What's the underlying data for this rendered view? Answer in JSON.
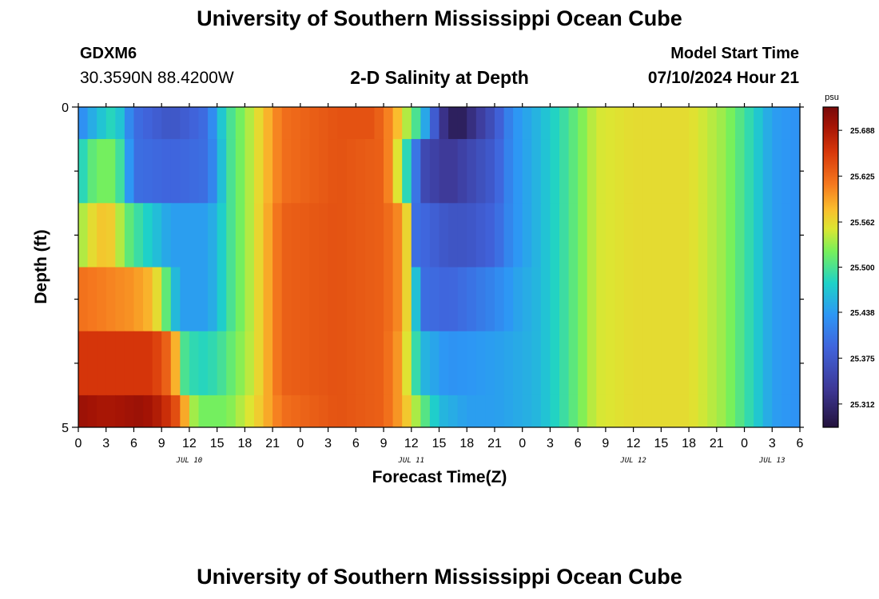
{
  "header": {
    "title": "University of Southern Mississippi Ocean Cube",
    "station_id": "GDXM6",
    "coordinates": "30.3590N  88.4200W",
    "subtitle": "2-D Salinity at Depth",
    "model_start_label": "Model Start Time",
    "model_start_value": "07/10/2024 Hour 21"
  },
  "footer": {
    "title": "University of Southern Mississippi Ocean Cube"
  },
  "chart_data": {
    "type": "heatmap",
    "title": "2-D Salinity at Depth",
    "xlabel": "Forecast Time(Z)",
    "ylabel": "Depth (ft)",
    "x_hours_range": [
      0,
      78
    ],
    "y_range": [
      0,
      5
    ],
    "y_tick_labels": [
      "0",
      "5"
    ],
    "x_tick_labels": [
      "0",
      "3",
      "6",
      "9",
      "12",
      "15",
      "18",
      "21",
      "0",
      "3",
      "6",
      "9",
      "12",
      "15",
      "18",
      "21",
      "0",
      "3",
      "6",
      "9",
      "12",
      "15",
      "18",
      "21",
      "0",
      "3",
      "6"
    ],
    "date_labels": [
      {
        "label": "JUL 10",
        "hour": 12
      },
      {
        "label": "JUL 11",
        "hour": 36
      },
      {
        "label": "JUL 12",
        "hour": 60
      },
      {
        "label": "JUL 13",
        "hour": 75
      }
    ],
    "colorbar": {
      "unit": "psu",
      "min": 25.28,
      "max": 25.72,
      "ticks": [
        25.312,
        25.375,
        25.438,
        25.5,
        25.562,
        25.625,
        25.688
      ],
      "tick_labels": [
        "25.312",
        "25.375",
        "25.438",
        "25.500",
        "25.562",
        "25.625",
        "25.688"
      ]
    },
    "depth_layers": [
      {
        "depth_range": [
          0,
          0.5
        ],
        "profile": [
          [
            0,
            25.42
          ],
          [
            2,
            25.46
          ],
          [
            4,
            25.49
          ],
          [
            6,
            25.4
          ],
          [
            10,
            25.37
          ],
          [
            14,
            25.4
          ],
          [
            15,
            25.45
          ],
          [
            16,
            25.49
          ],
          [
            19,
            25.55
          ],
          [
            22,
            25.62
          ],
          [
            28,
            25.64
          ],
          [
            32,
            25.64
          ],
          [
            34,
            25.6
          ],
          [
            35,
            25.56
          ],
          [
            36.5,
            25.5
          ],
          [
            38,
            25.42
          ],
          [
            39,
            25.34
          ],
          [
            40,
            25.31
          ],
          [
            41,
            25.29
          ],
          [
            42,
            25.31
          ],
          [
            45,
            25.37
          ],
          [
            47,
            25.43
          ],
          [
            50,
            25.46
          ],
          [
            53,
            25.5
          ],
          [
            56,
            25.55
          ],
          [
            60,
            25.56
          ],
          [
            66,
            25.56
          ],
          [
            70,
            25.53
          ],
          [
            73,
            25.48
          ],
          [
            75,
            25.44
          ],
          [
            78,
            25.43
          ]
        ]
      },
      {
        "depth_range": [
          0.5,
          1.5
        ],
        "profile": [
          [
            0,
            25.47
          ],
          [
            1,
            25.5
          ],
          [
            2,
            25.52
          ],
          [
            4,
            25.52
          ],
          [
            5,
            25.47
          ],
          [
            6,
            25.4
          ],
          [
            10,
            25.39
          ],
          [
            14,
            25.4
          ],
          [
            15,
            25.44
          ],
          [
            16,
            25.49
          ],
          [
            19,
            25.55
          ],
          [
            22,
            25.62
          ],
          [
            28,
            25.64
          ],
          [
            33,
            25.63
          ],
          [
            34,
            25.59
          ],
          [
            35,
            25.52
          ],
          [
            36,
            25.45
          ],
          [
            37,
            25.36
          ],
          [
            40,
            25.33
          ],
          [
            42,
            25.35
          ],
          [
            45,
            25.38
          ],
          [
            47,
            25.43
          ],
          [
            50,
            25.46
          ],
          [
            53,
            25.5
          ],
          [
            56,
            25.55
          ],
          [
            60,
            25.56
          ],
          [
            66,
            25.56
          ],
          [
            70,
            25.53
          ],
          [
            73,
            25.48
          ],
          [
            75,
            25.44
          ],
          [
            78,
            25.43
          ]
        ]
      },
      {
        "depth_range": [
          1.5,
          2.5
        ],
        "profile": [
          [
            0,
            25.53
          ],
          [
            1.5,
            25.56
          ],
          [
            3,
            25.58
          ],
          [
            4,
            25.56
          ],
          [
            5,
            25.52
          ],
          [
            6,
            25.5
          ],
          [
            8,
            25.47
          ],
          [
            10,
            25.44
          ],
          [
            14,
            25.44
          ],
          [
            15,
            25.46
          ],
          [
            16,
            25.49
          ],
          [
            19,
            25.55
          ],
          [
            22,
            25.63
          ],
          [
            28,
            25.64
          ],
          [
            33,
            25.63
          ],
          [
            35,
            25.6
          ],
          [
            36,
            25.53
          ],
          [
            36.5,
            25.4
          ],
          [
            40,
            25.37
          ],
          [
            42,
            25.37
          ],
          [
            45,
            25.39
          ],
          [
            47,
            25.43
          ],
          [
            50,
            25.46
          ],
          [
            53,
            25.5
          ],
          [
            56,
            25.55
          ],
          [
            60,
            25.56
          ],
          [
            66,
            25.56
          ],
          [
            70,
            25.53
          ],
          [
            73,
            25.48
          ],
          [
            75,
            25.44
          ],
          [
            78,
            25.43
          ]
        ]
      },
      {
        "depth_range": [
          2.5,
          3.5
        ],
        "profile": [
          [
            0,
            25.62
          ],
          [
            6,
            25.6
          ],
          [
            8,
            25.58
          ],
          [
            9,
            25.54
          ],
          [
            10,
            25.48
          ],
          [
            11,
            25.44
          ],
          [
            14,
            25.44
          ],
          [
            15,
            25.46
          ],
          [
            16,
            25.49
          ],
          [
            19,
            25.55
          ],
          [
            22,
            25.63
          ],
          [
            28,
            25.64
          ],
          [
            33,
            25.63
          ],
          [
            35,
            25.6
          ],
          [
            36,
            25.53
          ],
          [
            37,
            25.4
          ],
          [
            40,
            25.39
          ],
          [
            42,
            25.4
          ],
          [
            45,
            25.42
          ],
          [
            47,
            25.44
          ],
          [
            50,
            25.46
          ],
          [
            53,
            25.5
          ],
          [
            56,
            25.55
          ],
          [
            60,
            25.56
          ],
          [
            66,
            25.56
          ],
          [
            70,
            25.53
          ],
          [
            73,
            25.48
          ],
          [
            75,
            25.44
          ],
          [
            78,
            25.43
          ]
        ]
      },
      {
        "depth_range": [
          3.5,
          4.5
        ],
        "profile": [
          [
            0,
            25.66
          ],
          [
            8,
            25.66
          ],
          [
            10,
            25.62
          ],
          [
            11,
            25.55
          ],
          [
            11.5,
            25.5
          ],
          [
            13,
            25.48
          ],
          [
            15,
            25.49
          ],
          [
            19,
            25.55
          ],
          [
            22,
            25.63
          ],
          [
            28,
            25.64
          ],
          [
            33,
            25.63
          ],
          [
            35,
            25.59
          ],
          [
            36,
            25.52
          ],
          [
            37,
            25.46
          ],
          [
            40,
            25.43
          ],
          [
            45,
            25.44
          ],
          [
            48,
            25.45
          ],
          [
            50,
            25.46
          ],
          [
            53,
            25.5
          ],
          [
            56,
            25.55
          ],
          [
            60,
            25.56
          ],
          [
            66,
            25.56
          ],
          [
            70,
            25.53
          ],
          [
            73,
            25.48
          ],
          [
            75,
            25.44
          ],
          [
            78,
            25.43
          ]
        ]
      },
      {
        "depth_range": [
          4.5,
          5
        ],
        "profile": [
          [
            0,
            25.7
          ],
          [
            3,
            25.69
          ],
          [
            7,
            25.7
          ],
          [
            9,
            25.68
          ],
          [
            11,
            25.63
          ],
          [
            12,
            25.55
          ],
          [
            13,
            25.52
          ],
          [
            16,
            25.52
          ],
          [
            19,
            25.56
          ],
          [
            22,
            25.62
          ],
          [
            28,
            25.64
          ],
          [
            33,
            25.63
          ],
          [
            35,
            25.59
          ],
          [
            37,
            25.52
          ],
          [
            39,
            25.46
          ],
          [
            42,
            25.44
          ],
          [
            45,
            25.44
          ],
          [
            48,
            25.45
          ],
          [
            50,
            25.46
          ],
          [
            53,
            25.5
          ],
          [
            56,
            25.55
          ],
          [
            60,
            25.56
          ],
          [
            66,
            25.56
          ],
          [
            70,
            25.53
          ],
          [
            73,
            25.48
          ],
          [
            75,
            25.44
          ],
          [
            78,
            25.43
          ]
        ]
      }
    ]
  }
}
